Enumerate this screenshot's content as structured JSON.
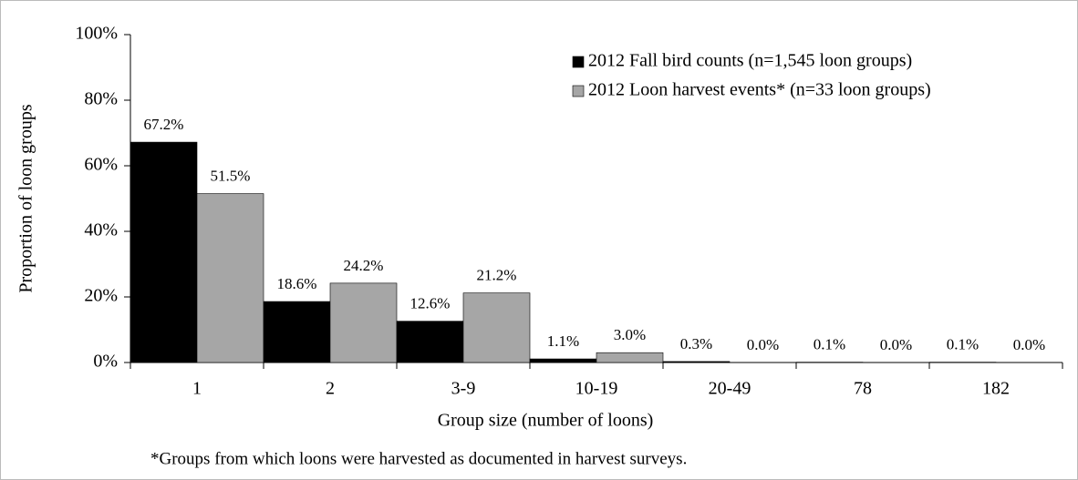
{
  "chart_data": {
    "type": "bar",
    "ylabel": "Proportion of loon groups",
    "xlabel": "Group size  (number of loons)",
    "footnote": "*Groups from which loons were harvested as documented in harvest surveys.",
    "categories": [
      "1",
      "2",
      "3-9",
      "10-19",
      "20-49",
      "78",
      "182"
    ],
    "series": [
      {
        "name": "2012 Fall bird counts (n=1,545 loon groups)",
        "color": "#000000",
        "values": [
          67.2,
          18.6,
          12.6,
          1.1,
          0.3,
          0.1,
          0.1
        ],
        "value_labels": [
          "67.2%",
          "18.6%",
          "12.6%",
          "1.1%",
          "0.3%",
          "0.1%",
          "0.1%"
        ]
      },
      {
        "name": "2012 Loon harvest events* (n=33 loon groups)",
        "color": "#a6a6a6",
        "values": [
          51.5,
          24.2,
          21.2,
          3.0,
          0.0,
          0.0,
          0.0
        ],
        "value_labels": [
          "51.5%",
          "24.2%",
          "21.2%",
          "3.0%",
          "0.0%",
          "0.0%",
          "0.0%"
        ]
      }
    ],
    "ylim": [
      0,
      100
    ],
    "yticks": [
      {
        "value": 0,
        "label": "0%"
      },
      {
        "value": 20,
        "label": "20%"
      },
      {
        "value": 40,
        "label": "40%"
      },
      {
        "value": 60,
        "label": "60%"
      },
      {
        "value": 80,
        "label": "80%"
      },
      {
        "value": 100,
        "label": "100%"
      }
    ],
    "legend": "top-right"
  }
}
